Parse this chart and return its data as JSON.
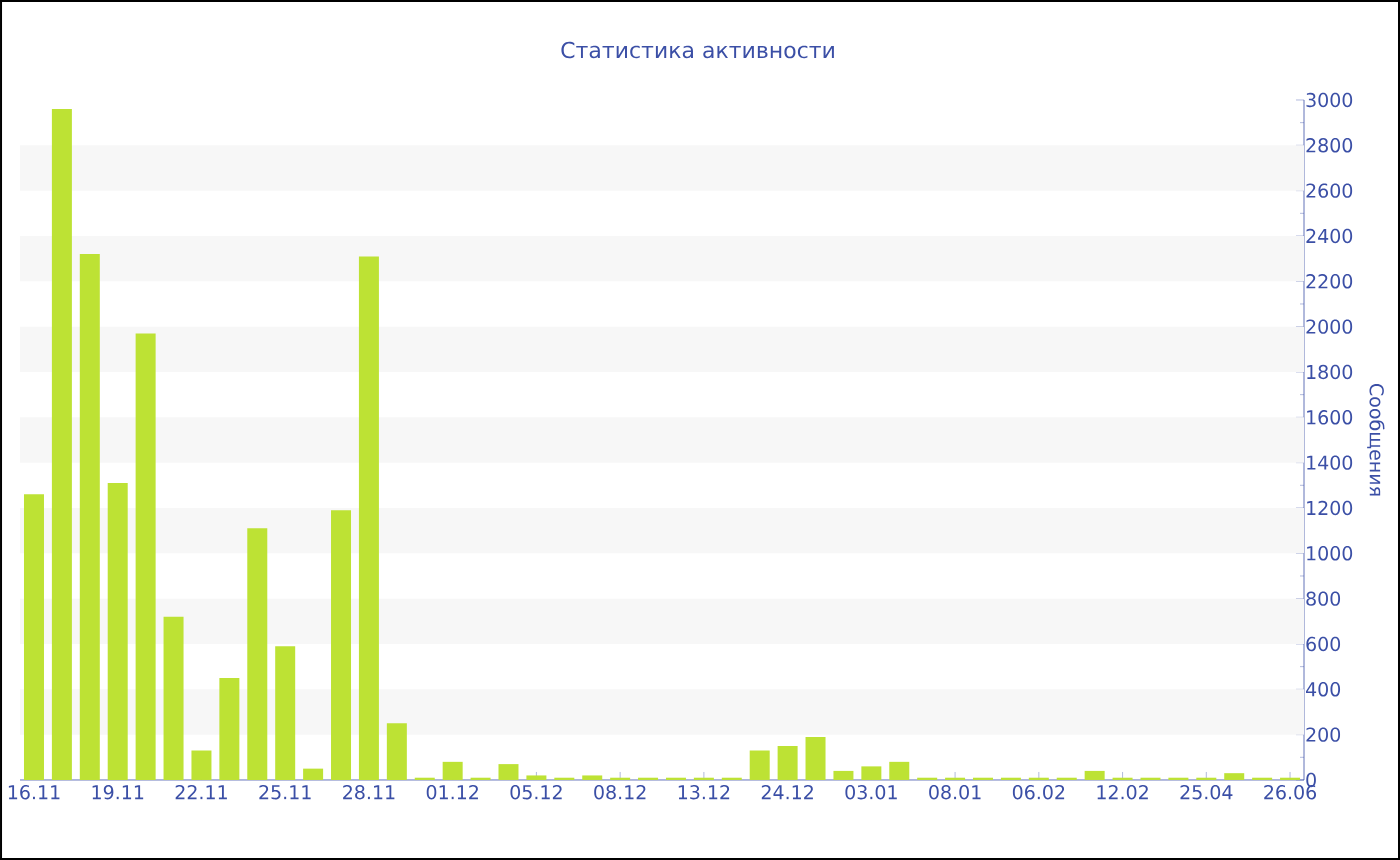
{
  "chart_data": {
    "type": "bar",
    "title": "Статистика активности",
    "ylabel": "Сообщения",
    "categories": [
      "16.11",
      null,
      null,
      "19.11",
      null,
      null,
      "22.11",
      null,
      null,
      "25.11",
      null,
      null,
      "28.11",
      null,
      null,
      "01.12",
      null,
      null,
      "05.12",
      null,
      null,
      "08.12",
      null,
      null,
      "13.12",
      null,
      null,
      "24.12",
      null,
      null,
      "03.01",
      null,
      null,
      "08.01",
      null,
      null,
      "06.02",
      null,
      null,
      "12.02",
      null,
      null,
      "25.04",
      null,
      null,
      "26.06"
    ],
    "values": [
      1260,
      2960,
      2320,
      1310,
      1970,
      720,
      130,
      450,
      1110,
      590,
      50,
      1190,
      2310,
      250,
      10,
      80,
      10,
      70,
      20,
      10,
      20,
      10,
      10,
      10,
      10,
      10,
      130,
      150,
      190,
      40,
      60,
      80,
      10,
      10,
      10,
      10,
      10,
      10,
      40,
      10,
      10,
      10,
      10,
      30,
      10,
      10
    ],
    "color": "#bde234",
    "ylim": [
      0,
      3000
    ],
    "yticks": [
      0,
      200,
      400,
      600,
      800,
      1000,
      1200,
      1400,
      1600,
      1800,
      2000,
      2200,
      2400,
      2600,
      2800,
      3000
    ],
    "bands": [
      {
        "axis": "y",
        "from": 200,
        "to": 400,
        "color": "#f7f7f7"
      },
      {
        "axis": "y",
        "from": 600,
        "to": 800,
        "color": "#f7f7f7"
      },
      {
        "axis": "y",
        "from": 1000,
        "to": 1200,
        "color": "#f7f7f7"
      },
      {
        "axis": "y",
        "from": 1400,
        "to": 1600,
        "color": "#f7f7f7"
      },
      {
        "axis": "y",
        "from": 1800,
        "to": 2000,
        "color": "#f7f7f7"
      },
      {
        "axis": "y",
        "from": 2200,
        "to": 2400,
        "color": "#f7f7f7"
      },
      {
        "axis": "y",
        "from": 2600,
        "to": 2800,
        "color": "#f7f7f7"
      }
    ]
  }
}
